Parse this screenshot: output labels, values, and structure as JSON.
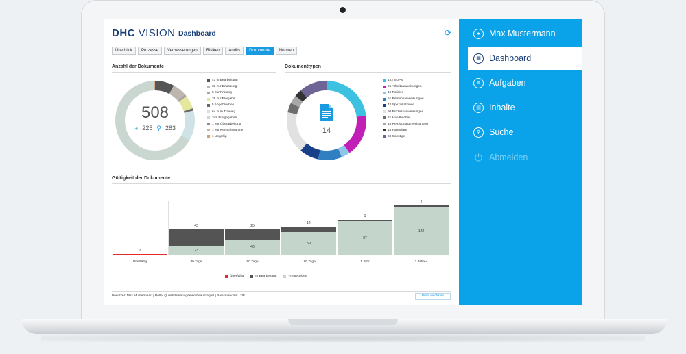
{
  "app": {
    "logo_main": "DHC",
    "logo_sub": "VISION",
    "page_title": "Dashboard"
  },
  "tabs": [
    {
      "label": "Überblick"
    },
    {
      "label": "Prozesse"
    },
    {
      "label": "Verbesserungen"
    },
    {
      "label": "Risiken"
    },
    {
      "label": "Audits"
    },
    {
      "label": "Dokumente",
      "active": true
    },
    {
      "label": "Normen"
    }
  ],
  "doc_count": {
    "title": "Anzahl der Dokumente",
    "total": "508",
    "sub_a": "225",
    "sub_b": "283",
    "legend": [
      {
        "label": "41 in Bearbeitung",
        "value": 41,
        "color": "#555555"
      },
      {
        "label": "30 zur Erfassung",
        "value": 30,
        "color": "#bdb6ae"
      },
      {
        "label": "5 zur Prüfung",
        "value": 5,
        "color": "#aaa49e"
      },
      {
        "label": "29 zur Freigabe",
        "value": 29,
        "color": "#e6e79f"
      },
      {
        "label": "5 Abgebrochen",
        "value": 5,
        "color": "#6b6b6b"
      },
      {
        "label": "64 zum Training",
        "value": 64,
        "color": "#cfe2e6"
      },
      {
        "label": "348 Freigegeben",
        "value": 348,
        "color": "#cad7d1"
      },
      {
        "label": "1 zur Überarbeitung",
        "value": 1,
        "color": "#a0897a"
      },
      {
        "label": "1 zur Kenntnisnahme",
        "value": 1,
        "color": "#c9b79f"
      },
      {
        "label": "1 Ungültig",
        "value": 1,
        "color": "#d8a06e"
      }
    ]
  },
  "doc_types": {
    "title": "Dokumenttypen",
    "center_value": "14",
    "legend": [
      {
        "label": "122 SOPs",
        "value": 122,
        "color": "#3cc1e0"
      },
      {
        "label": "91 Arbeitsanweisungen",
        "value": 91,
        "color": "#c020b5"
      },
      {
        "label": "19 Policies",
        "value": 19,
        "color": "#8ec6e8"
      },
      {
        "label": "51 Betriebsanweisungen",
        "value": 51,
        "color": "#2f7fc1"
      },
      {
        "label": "42 Spezifikationen",
        "value": 42,
        "color": "#173f8a"
      },
      {
        "label": "90 Prozessanweisungen",
        "value": 90,
        "color": "#e1e1e1"
      },
      {
        "label": "21 Handbücher",
        "value": 21,
        "color": "#6e6e6e"
      },
      {
        "label": "18 Reinigungsanweisungen",
        "value": 18,
        "color": "#a8a8a8"
      },
      {
        "label": "16 Formulare",
        "value": 16,
        "color": "#333333"
      },
      {
        "label": "60 Sonstige",
        "value": 60,
        "color": "#6f6496"
      }
    ]
  },
  "validity": {
    "title": "Gültigkeit der Dokumente",
    "chart_data": {
      "type": "bar",
      "categories": [
        "Überfällig",
        "30 Tage",
        "90 Tage",
        "180 Tage",
        "1 Jahr",
        "2 Jahre+"
      ],
      "series": [
        {
          "name": "Überfällig",
          "color": "#e52b2b",
          "values": [
            2,
            0,
            0,
            0,
            0,
            0
          ]
        },
        {
          "name": "In Bearbeitung",
          "color": "#545454",
          "values": [
            0,
            43,
            25,
            14,
            1,
            2
          ]
        },
        {
          "name": "Freigegeben",
          "color": "#c4d6cc",
          "values": [
            0,
            23,
            40,
            59,
            87,
            122
          ]
        }
      ],
      "top_labels": [
        "2",
        "43",
        "25",
        "14",
        "1",
        "2"
      ],
      "inner_labels": [
        "",
        "23",
        "40",
        "59",
        "87",
        "122"
      ]
    }
  },
  "footer": {
    "text": "Benutzer: Max Mustermann | Rolle: Qualitätsmanagementbeauftragter | Basismandant | DE",
    "profile_button": "Profil wechseln"
  },
  "sidebar": {
    "items": [
      {
        "label": "Max Mustermann",
        "icon": "user-icon"
      },
      {
        "label": "Dashboard",
        "icon": "dashboard-icon",
        "active": true
      },
      {
        "label": "Aufgaben",
        "icon": "tasks-icon"
      },
      {
        "label": "Inhalte",
        "icon": "content-icon"
      },
      {
        "label": "Suche",
        "icon": "search-icon"
      },
      {
        "label": "Abmelden",
        "icon": "power-icon",
        "disabled": true
      }
    ]
  }
}
